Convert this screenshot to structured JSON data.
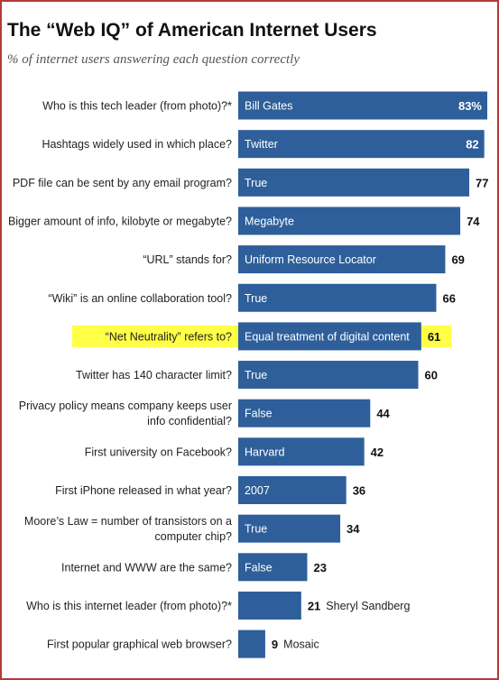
{
  "header": {
    "title": "The “Web IQ” of American Internet Users",
    "subtitle": "% of internet users answering each question correctly"
  },
  "colors": {
    "bar": "#2e5f9a",
    "highlight": "#ffff33",
    "value_inside": "#ffffff",
    "value_outside": "#111111"
  },
  "chart_data": {
    "type": "bar",
    "orientation": "horizontal",
    "title": "The “Web IQ” of American Internet Users",
    "subtitle": "% of internet users answering each question correctly",
    "xlim": [
      0,
      83
    ],
    "categories": [
      "Who is this tech leader (from photo)?*",
      "Hashtags widely used in which place?",
      "PDF file can be sent by any email program?",
      "Bigger amount of info, kilobyte or megabyte?",
      "“URL” stands for?",
      "“Wiki” is an online collaboration tool?",
      "“Net Neutrality” refers to?",
      "Twitter has 140 character limit?",
      "Privacy policy means company keeps user info confidential?",
      "First university on Facebook?",
      "First iPhone released in what year?",
      "Moore’s Law = number of transistors on a computer chip?",
      "Internet and WWW are the same?",
      "Who is this internet leader (from photo)?*",
      "First popular graphical web browser?"
    ],
    "answers": [
      "Bill Gates",
      "Twitter",
      "True",
      "Megabyte",
      "Uniform Resource Locator",
      "True",
      "Equal treatment of digital content",
      "True",
      "False",
      "Harvard",
      "2007",
      "True",
      "False",
      "Sheryl Sandberg",
      "Mosaic"
    ],
    "values": [
      83,
      82,
      77,
      74,
      69,
      66,
      61,
      60,
      44,
      42,
      36,
      34,
      23,
      21,
      9
    ],
    "value_labels": [
      "83%",
      "82",
      "77",
      "74",
      "69",
      "66",
      "61",
      "60",
      "44",
      "42",
      "36",
      "34",
      "23",
      "21",
      "9"
    ],
    "question_lines": [
      [
        "Who is this tech leader (from photo)?*"
      ],
      [
        "Hashtags widely used in which place?"
      ],
      [
        "PDF file can be sent by any email program?"
      ],
      [
        "Bigger amount of info, kilobyte or megabyte?"
      ],
      [
        "“URL” stands for?"
      ],
      [
        "“Wiki” is an online collaboration tool?"
      ],
      [
        "“Net Neutrality” refers to?"
      ],
      [
        "Twitter has 140 character limit?"
      ],
      [
        "Privacy policy means company keeps user",
        "info confidential?"
      ],
      [
        "First university on Facebook?"
      ],
      [
        "First iPhone released in what year?"
      ],
      [
        "Moore’s Law = number of transistors on a",
        "computer chip?"
      ],
      [
        "Internet and WWW are the same?"
      ],
      [
        "Who is this internet leader (from photo)?*"
      ],
      [
        "First popular graphical web browser?"
      ]
    ],
    "value_inside_bar": [
      true,
      true,
      false,
      false,
      false,
      false,
      false,
      false,
      false,
      false,
      false,
      false,
      false,
      false,
      false
    ],
    "answer_outside_bar": [
      false,
      false,
      false,
      false,
      false,
      false,
      false,
      false,
      false,
      false,
      false,
      false,
      false,
      true,
      true
    ],
    "highlighted_index": 6
  }
}
